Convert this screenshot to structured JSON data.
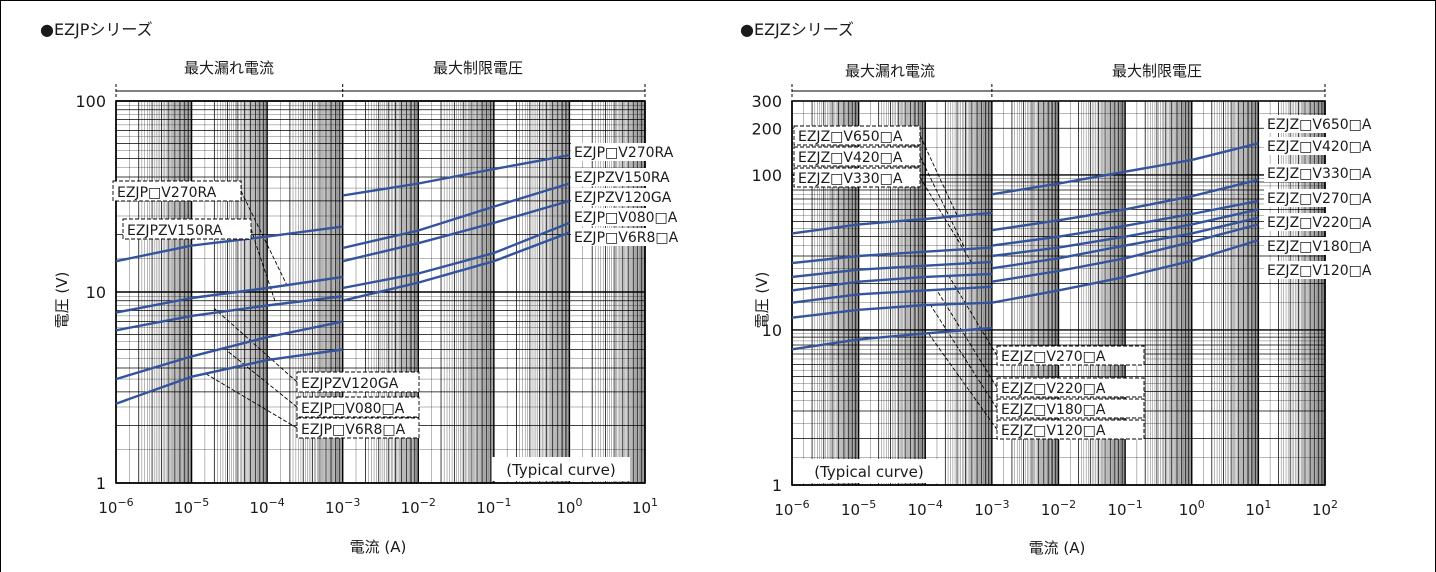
{
  "colors": {
    "curve": "#34549e",
    "grid": "#000000",
    "leader": "#000000",
    "text": "#1a1a1a"
  },
  "chart_data": [
    {
      "type": "line",
      "scale": "log-log",
      "title": "●EZJPシリーズ",
      "xlabel": "電流 (A)",
      "ylabel": "電圧 (V)",
      "xlim": [
        1e-06,
        10
      ],
      "ylim": [
        1,
        100
      ],
      "x_ticks": [
        {
          "v": 1e-06,
          "b": "10",
          "e": "−6"
        },
        {
          "v": 1e-05,
          "b": "10",
          "e": "−5"
        },
        {
          "v": 0.0001,
          "b": "10",
          "e": "−4"
        },
        {
          "v": 0.001,
          "b": "10",
          "e": "−3"
        },
        {
          "v": 0.01,
          "b": "10",
          "e": "−2"
        },
        {
          "v": 0.1,
          "b": "10",
          "e": "−1"
        },
        {
          "v": 1,
          "b": "10",
          "e": "0"
        },
        {
          "v": 10,
          "b": "10",
          "e": "1"
        }
      ],
      "y_ticks": [
        {
          "v": 1,
          "t": "1"
        },
        {
          "v": 10,
          "t": "10"
        },
        {
          "v": 100,
          "t": "100"
        }
      ],
      "regions": [
        {
          "label": "最大漏れ電流",
          "x": [
            1e-06,
            0.001
          ]
        },
        {
          "label": "最大制限電圧",
          "x": [
            0.001,
            10
          ]
        }
      ],
      "note": "(Typical curve)",
      "series": [
        {
          "name": "EZJP□V270RA",
          "leak": [
            [
              1e-06,
              14.5
            ],
            [
              1e-05,
              17.5
            ],
            [
              0.0001,
              19.5
            ],
            [
              0.001,
              22
            ]
          ],
          "clamp": [
            [
              0.001,
              32
            ],
            [
              0.01,
              37
            ],
            [
              0.1,
              44
            ],
            [
              1,
              52
            ]
          ]
        },
        {
          "name": "EZJPZV150RA",
          "leak": [
            [
              1e-06,
              7.8
            ],
            [
              1e-05,
              9.3
            ],
            [
              0.0001,
              10.5
            ],
            [
              0.001,
              12
            ]
          ],
          "clamp": [
            [
              0.001,
              17
            ],
            [
              0.01,
              21
            ],
            [
              0.1,
              28
            ],
            [
              1,
              37
            ]
          ]
        },
        {
          "name": "EZJPZV120GA",
          "leak": [
            [
              1e-06,
              6.3
            ],
            [
              1e-05,
              7.5
            ],
            [
              0.0001,
              8.5
            ],
            [
              0.001,
              9.5
            ]
          ],
          "clamp": [
            [
              0.001,
              14.5
            ],
            [
              0.01,
              18
            ],
            [
              0.1,
              23
            ],
            [
              1,
              30
            ]
          ]
        },
        {
          "name": "EZJP□V080□A",
          "leak": [
            [
              1e-06,
              3.5
            ],
            [
              1e-05,
              4.6
            ],
            [
              0.0001,
              5.8
            ],
            [
              0.001,
              7
            ]
          ],
          "clamp": [
            [
              0.001,
              10.5
            ],
            [
              0.01,
              12.5
            ],
            [
              0.1,
              16
            ],
            [
              1,
              23
            ]
          ]
        },
        {
          "name": "EZJP□V6R8□A",
          "leak": [
            [
              1e-06,
              2.6
            ],
            [
              1e-05,
              3.6
            ],
            [
              0.0001,
              4.4
            ],
            [
              0.001,
              5
            ]
          ],
          "clamp": [
            [
              0.001,
              9
            ],
            [
              0.01,
              11.2
            ],
            [
              0.1,
              14.5
            ],
            [
              1,
              20.5
            ]
          ]
        }
      ]
    },
    {
      "type": "line",
      "scale": "log-log",
      "title": "●EZJZシリーズ",
      "xlabel": "電流 (A)",
      "ylabel": "電圧 (V)",
      "xlim": [
        1e-06,
        100
      ],
      "ylim": [
        1,
        300
      ],
      "x_ticks": [
        {
          "v": 1e-06,
          "b": "10",
          "e": "−6"
        },
        {
          "v": 1e-05,
          "b": "10",
          "e": "−5"
        },
        {
          "v": 0.0001,
          "b": "10",
          "e": "−4"
        },
        {
          "v": 0.001,
          "b": "10",
          "e": "−3"
        },
        {
          "v": 0.01,
          "b": "10",
          "e": "−2"
        },
        {
          "v": 0.1,
          "b": "10",
          "e": "−1"
        },
        {
          "v": 1,
          "b": "10",
          "e": "0"
        },
        {
          "v": 10,
          "b": "10",
          "e": "1"
        },
        {
          "v": 100,
          "b": "10",
          "e": "2"
        }
      ],
      "y_ticks": [
        {
          "v": 1,
          "t": "1"
        },
        {
          "v": 10,
          "t": "10"
        },
        {
          "v": 100,
          "t": "100"
        },
        {
          "v": 200,
          "t": "200"
        },
        {
          "v": 300,
          "t": "300"
        }
      ],
      "regions": [
        {
          "label": "最大漏れ電流",
          "x": [
            1e-06,
            0.001
          ]
        },
        {
          "label": "最大制限電圧",
          "x": [
            0.001,
            100
          ]
        }
      ],
      "note": "(Typical curve)",
      "series": [
        {
          "name": "EZJZ□V650□A",
          "leak": [
            [
              1e-06,
              42
            ],
            [
              1e-05,
              48
            ],
            [
              0.0001,
              52
            ],
            [
              0.001,
              57
            ]
          ],
          "clamp": [
            [
              0.001,
              75
            ],
            [
              0.01,
              88
            ],
            [
              0.1,
              105
            ],
            [
              1,
              125
            ],
            [
              10,
              160
            ]
          ]
        },
        {
          "name": "EZJZ□V420□A",
          "leak": [
            [
              1e-06,
              27
            ],
            [
              1e-05,
              30
            ],
            [
              0.0001,
              32
            ],
            [
              0.001,
              34
            ]
          ],
          "clamp": [
            [
              0.001,
              44
            ],
            [
              0.01,
              51
            ],
            [
              0.1,
              60
            ],
            [
              1,
              73
            ],
            [
              10,
              93
            ]
          ]
        },
        {
          "name": "EZJZ□V330□A",
          "leak": [
            [
              1e-06,
              22
            ],
            [
              1e-05,
              24.5
            ],
            [
              0.0001,
              26
            ],
            [
              0.001,
              27.5
            ]
          ],
          "clamp": [
            [
              0.001,
              35
            ],
            [
              0.01,
              40
            ],
            [
              0.1,
              47
            ],
            [
              1,
              56
            ],
            [
              10,
              68
            ]
          ]
        },
        {
          "name": "EZJZ□V270□A",
          "leak": [
            [
              1e-06,
              18
            ],
            [
              1e-05,
              20.5
            ],
            [
              0.0001,
              22
            ],
            [
              0.001,
              23
            ]
          ],
          "clamp": [
            [
              0.001,
              30
            ],
            [
              0.01,
              34
            ],
            [
              0.1,
              40
            ],
            [
              1,
              48
            ],
            [
              10,
              60
            ]
          ]
        },
        {
          "name": "EZJZ□V220□A",
          "leak": [
            [
              1e-06,
              15
            ],
            [
              1e-05,
              17
            ],
            [
              0.0001,
              18
            ],
            [
              0.001,
              19
            ]
          ],
          "clamp": [
            [
              0.001,
              25
            ],
            [
              0.01,
              29
            ],
            [
              0.1,
              35
            ],
            [
              1,
              42
            ],
            [
              10,
              53
            ]
          ]
        },
        {
          "name": "EZJZ□V180□A",
          "leak": [
            [
              1e-06,
              12
            ],
            [
              1e-05,
              13.5
            ],
            [
              0.0001,
              14.5
            ],
            [
              0.001,
              15
            ]
          ],
          "clamp": [
            [
              0.001,
              20.5
            ],
            [
              0.01,
              24
            ],
            [
              0.1,
              29
            ],
            [
              1,
              37
            ],
            [
              10,
              48
            ]
          ]
        },
        {
          "name": "EZJZ□V120□A",
          "leak": [
            [
              1e-06,
              7.5
            ],
            [
              1e-05,
              8.7
            ],
            [
              0.0001,
              9.5
            ],
            [
              0.001,
              10.3
            ]
          ],
          "clamp": [
            [
              0.001,
              15
            ],
            [
              0.01,
              18
            ],
            [
              0.1,
              22
            ],
            [
              1,
              28
            ],
            [
              10,
              38
            ]
          ]
        }
      ]
    }
  ]
}
